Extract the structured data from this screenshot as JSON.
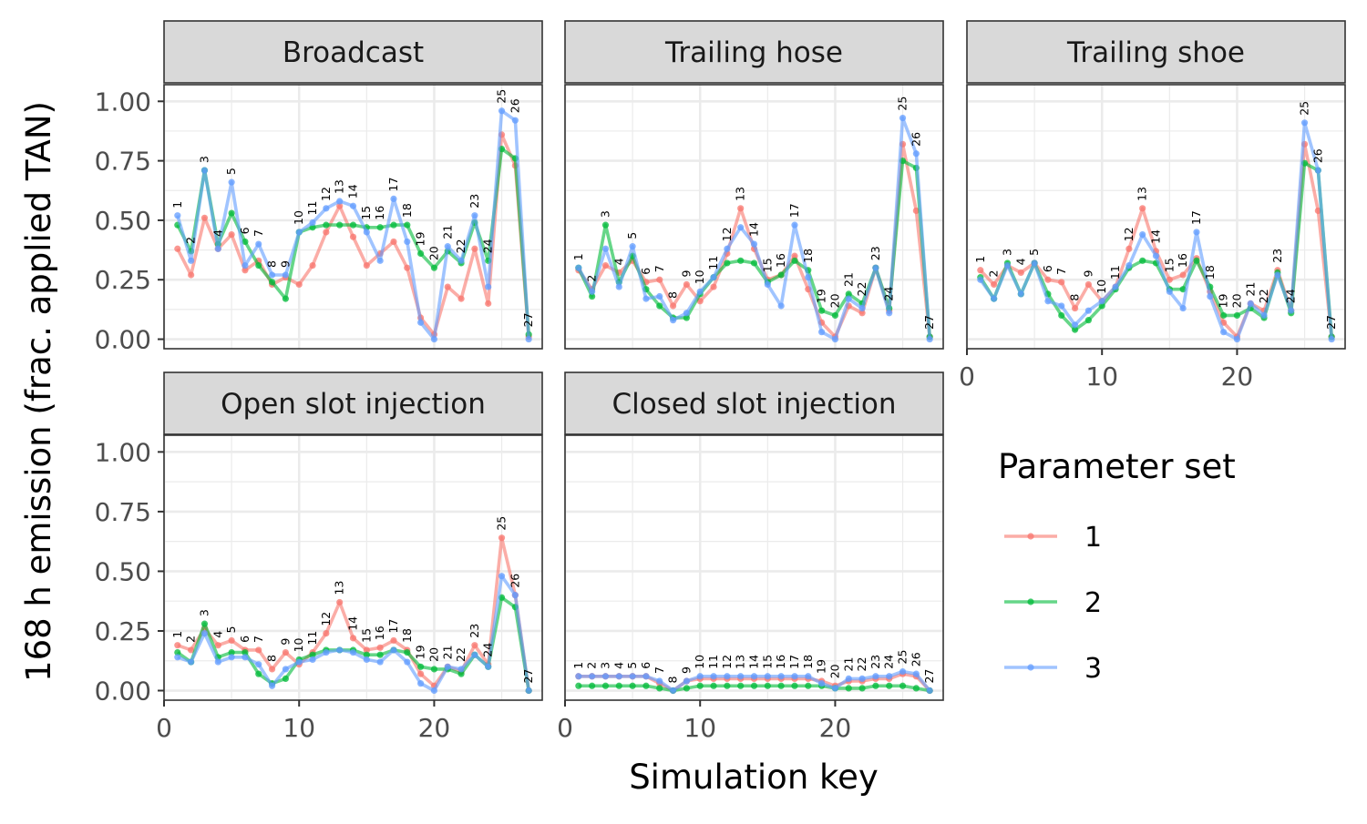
{
  "chart_data": {
    "type": "line",
    "ylabel": "168 h emission (frac. applied TAN)",
    "xlabel": "Simulation key",
    "xlim": [
      0,
      28
    ],
    "ylim": [
      0,
      1.05
    ],
    "x_ticks": [
      0,
      10,
      20
    ],
    "y_ticks": [
      0,
      0.25,
      0.5,
      0.75,
      1.0
    ],
    "x_tick_labels": [
      "0",
      "10",
      "20"
    ],
    "y_tick_labels": [
      "0.00",
      "0.25",
      "0.50",
      "0.75",
      "1.00"
    ],
    "grid": true,
    "legend": {
      "title": "Parameter set",
      "position": "right",
      "entries": [
        "1",
        "2",
        "3"
      ]
    },
    "colors": {
      "1": "#F8766D",
      "2": "#00BA38",
      "3": "#619CFF"
    },
    "x": [
      1,
      2,
      3,
      4,
      5,
      6,
      7,
      8,
      9,
      10,
      11,
      12,
      13,
      14,
      15,
      16,
      17,
      18,
      19,
      20,
      21,
      22,
      23,
      24,
      25,
      26,
      27
    ],
    "point_labels": [
      "1",
      "2",
      "3",
      "4",
      "5",
      "6",
      "7",
      "8",
      "9",
      "10",
      "11",
      "12",
      "13",
      "14",
      "15",
      "16",
      "17",
      "18",
      "19",
      "20",
      "21",
      "22",
      "23",
      "24",
      "25",
      "26",
      "27"
    ],
    "panels": [
      {
        "title": "Broadcast",
        "series": [
          {
            "name": "1",
            "values": [
              0.38,
              0.27,
              0.51,
              0.38,
              0.44,
              0.29,
              0.33,
              0.23,
              0.26,
              0.23,
              0.31,
              0.45,
              0.56,
              0.43,
              0.31,
              0.36,
              0.41,
              0.3,
              0.09,
              0.02,
              0.22,
              0.17,
              0.38,
              0.15,
              0.86,
              0.73,
              0.01
            ]
          },
          {
            "name": "2",
            "values": [
              0.48,
              0.37,
              0.71,
              0.4,
              0.53,
              0.41,
              0.31,
              0.24,
              0.17,
              0.45,
              0.47,
              0.48,
              0.48,
              0.48,
              0.47,
              0.47,
              0.48,
              0.48,
              0.36,
              0.3,
              0.37,
              0.32,
              0.49,
              0.33,
              0.8,
              0.76,
              0.02
            ]
          },
          {
            "name": "3",
            "values": [
              0.52,
              0.33,
              0.71,
              0.38,
              0.66,
              0.31,
              0.4,
              0.27,
              0.27,
              0.45,
              0.49,
              0.55,
              0.58,
              0.56,
              0.45,
              0.33,
              0.59,
              0.41,
              0.07,
              0.0,
              0.39,
              0.33,
              0.52,
              0.22,
              0.96,
              0.92,
              0.0
            ]
          }
        ]
      },
      {
        "title": "Trailing hose",
        "series": [
          {
            "name": "1",
            "values": [
              0.29,
              0.21,
              0.31,
              0.28,
              0.33,
              0.24,
              0.25,
              0.14,
              0.23,
              0.16,
              0.22,
              0.36,
              0.55,
              0.38,
              0.25,
              0.27,
              0.35,
              0.21,
              0.07,
              0.01,
              0.14,
              0.11,
              0.3,
              0.12,
              0.82,
              0.54,
              0.01
            ]
          },
          {
            "name": "2",
            "values": [
              0.3,
              0.18,
              0.48,
              0.24,
              0.35,
              0.21,
              0.14,
              0.09,
              0.09,
              0.19,
              0.26,
              0.32,
              0.33,
              0.32,
              0.24,
              0.27,
              0.33,
              0.29,
              0.12,
              0.1,
              0.19,
              0.15,
              0.3,
              0.13,
              0.75,
              0.72,
              0.01
            ]
          },
          {
            "name": "3",
            "values": [
              0.3,
              0.2,
              0.38,
              0.22,
              0.39,
              0.17,
              0.18,
              0.08,
              0.11,
              0.2,
              0.26,
              0.38,
              0.47,
              0.4,
              0.23,
              0.14,
              0.48,
              0.26,
              0.03,
              0.0,
              0.17,
              0.13,
              0.3,
              0.11,
              0.93,
              0.78,
              0.0
            ]
          }
        ]
      },
      {
        "title": "Trailing shoe",
        "series": [
          {
            "name": "1",
            "values": [
              0.29,
              0.23,
              0.31,
              0.28,
              0.32,
              0.25,
              0.24,
              0.13,
              0.23,
              0.16,
              0.22,
              0.38,
              0.55,
              0.37,
              0.25,
              0.27,
              0.34,
              0.2,
              0.07,
              0.01,
              0.15,
              0.12,
              0.29,
              0.12,
              0.82,
              0.54,
              0.01
            ]
          },
          {
            "name": "2",
            "values": [
              0.26,
              0.17,
              0.32,
              0.19,
              0.32,
              0.19,
              0.1,
              0.04,
              0.08,
              0.14,
              0.21,
              0.3,
              0.33,
              0.32,
              0.21,
              0.21,
              0.33,
              0.22,
              0.1,
              0.1,
              0.13,
              0.09,
              0.28,
              0.11,
              0.74,
              0.71,
              0.01
            ]
          },
          {
            "name": "3",
            "values": [
              0.25,
              0.17,
              0.31,
              0.19,
              0.32,
              0.16,
              0.14,
              0.06,
              0.12,
              0.16,
              0.22,
              0.31,
              0.44,
              0.35,
              0.2,
              0.13,
              0.45,
              0.18,
              0.03,
              0.0,
              0.15,
              0.1,
              0.27,
              0.12,
              0.91,
              0.71,
              0.0
            ]
          }
        ]
      },
      {
        "title": "Open slot injection",
        "series": [
          {
            "name": "1",
            "values": [
              0.19,
              0.17,
              0.26,
              0.19,
              0.21,
              0.17,
              0.17,
              0.09,
              0.16,
              0.11,
              0.16,
              0.24,
              0.37,
              0.22,
              0.17,
              0.18,
              0.21,
              0.17,
              0.07,
              0.02,
              0.1,
              0.08,
              0.19,
              0.11,
              0.64,
              0.4,
              0.0
            ]
          },
          {
            "name": "2",
            "values": [
              0.16,
              0.12,
              0.28,
              0.14,
              0.16,
              0.16,
              0.07,
              0.03,
              0.05,
              0.13,
              0.15,
              0.17,
              0.17,
              0.17,
              0.15,
              0.15,
              0.17,
              0.16,
              0.1,
              0.09,
              0.09,
              0.07,
              0.15,
              0.1,
              0.39,
              0.35,
              0.0
            ]
          },
          {
            "name": "3",
            "values": [
              0.14,
              0.12,
              0.24,
              0.12,
              0.14,
              0.14,
              0.11,
              0.02,
              0.09,
              0.12,
              0.13,
              0.16,
              0.17,
              0.16,
              0.13,
              0.12,
              0.17,
              0.12,
              0.03,
              0.0,
              0.1,
              0.09,
              0.15,
              0.1,
              0.48,
              0.4,
              0.0
            ]
          }
        ]
      },
      {
        "title": "Closed slot injection",
        "series": [
          {
            "name": "1",
            "values": [
              0.06,
              0.06,
              0.06,
              0.06,
              0.06,
              0.06,
              0.03,
              0.0,
              0.04,
              0.05,
              0.05,
              0.05,
              0.05,
              0.05,
              0.05,
              0.05,
              0.05,
              0.05,
              0.04,
              0.02,
              0.04,
              0.04,
              0.05,
              0.05,
              0.07,
              0.06,
              0.0
            ]
          },
          {
            "name": "2",
            "values": [
              0.02,
              0.02,
              0.02,
              0.02,
              0.02,
              0.02,
              0.01,
              0.0,
              0.01,
              0.02,
              0.02,
              0.02,
              0.02,
              0.02,
              0.02,
              0.02,
              0.02,
              0.02,
              0.02,
              0.01,
              0.01,
              0.01,
              0.02,
              0.02,
              0.02,
              0.01,
              0.0
            ]
          },
          {
            "name": "3",
            "values": [
              0.06,
              0.06,
              0.06,
              0.06,
              0.06,
              0.06,
              0.04,
              0.0,
              0.04,
              0.06,
              0.06,
              0.06,
              0.06,
              0.06,
              0.06,
              0.06,
              0.06,
              0.06,
              0.03,
              0.01,
              0.05,
              0.05,
              0.06,
              0.06,
              0.08,
              0.07,
              0.0
            ]
          }
        ]
      }
    ]
  }
}
